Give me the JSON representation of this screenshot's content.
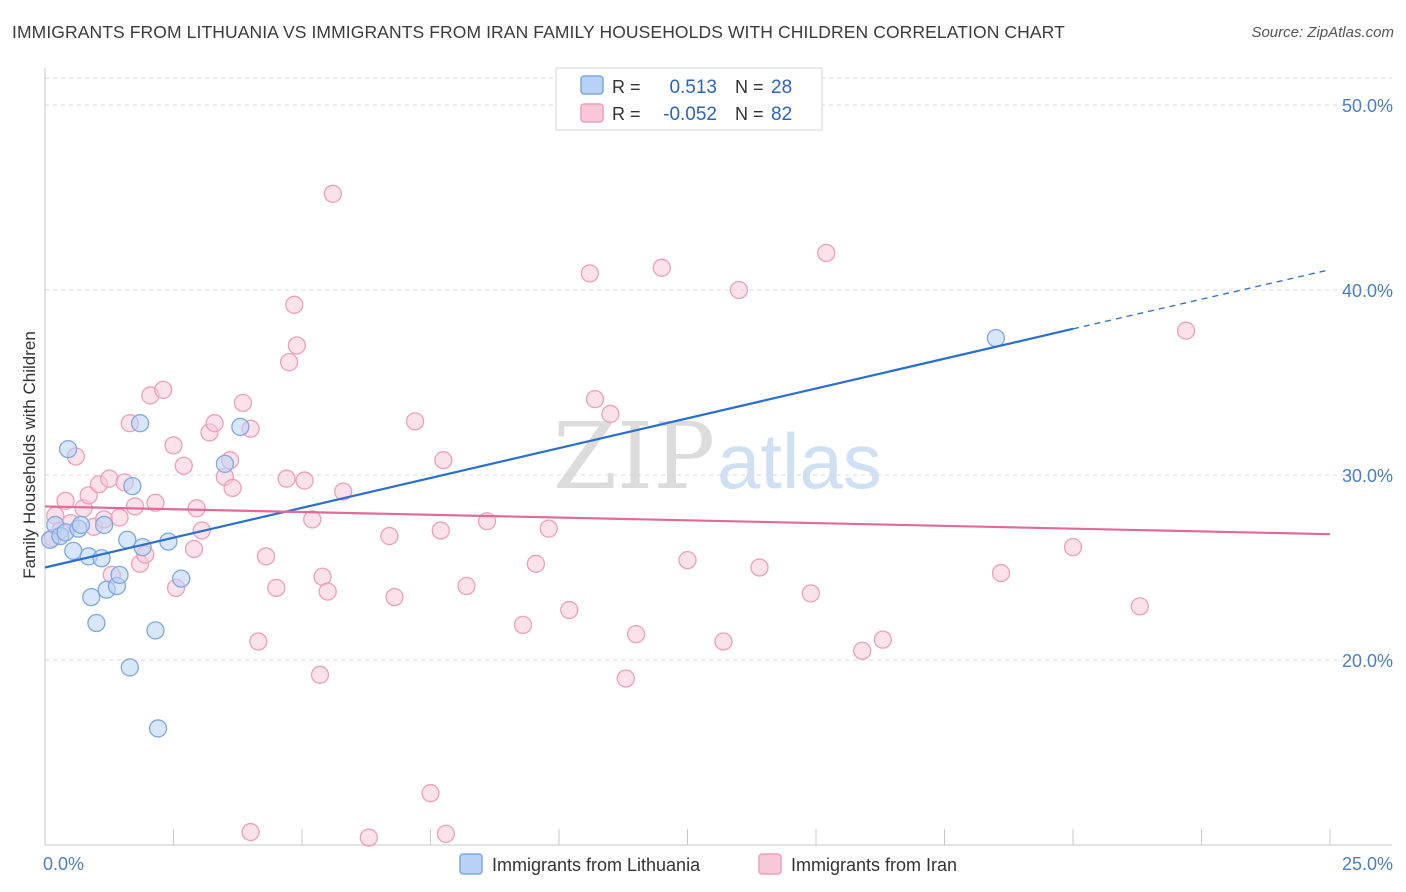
{
  "title": "IMMIGRANTS FROM LITHUANIA VS IMMIGRANTS FROM IRAN FAMILY HOUSEHOLDS WITH CHILDREN CORRELATION CHART",
  "source": "Source: ZipAtlas.com",
  "watermark": {
    "zip": "ZIP",
    "atlas": "atlas"
  },
  "colors": {
    "lithuania_fill": "#b8d2f5",
    "lithuania_stroke": "#7ea8e0",
    "lithuania_line": "#2a6fcf",
    "iran_fill": "#f8c8d8",
    "iran_stroke": "#ee9fbb",
    "iran_line": "#e06a98",
    "tick_label": "#4a7fc6",
    "grid": "#d8d8d8"
  },
  "legend_box": {
    "rows": [
      {
        "r_label": "R =",
        "r_value": "0.513",
        "n_label": "N =",
        "n_value": "28",
        "series": "lithuania"
      },
      {
        "r_label": "R =",
        "r_value": "-0.052",
        "n_label": "N =",
        "n_value": "82",
        "series": "iran"
      }
    ]
  },
  "chart_data": {
    "type": "scatter",
    "title": "IMMIGRANTS FROM LITHUANIA VS IMMIGRANTS FROM IRAN FAMILY HOUSEHOLDS WITH CHILDREN CORRELATION CHART",
    "xlabel": "",
    "ylabel": "Family Households with Children",
    "xlim": [
      0,
      25
    ],
    "ylim": [
      10,
      52
    ],
    "x_tick_labels": [
      {
        "value": 0,
        "label": "0.0%"
      },
      {
        "value": 25,
        "label": "25.0%"
      }
    ],
    "x_minor_ticks": [
      2.5,
      5,
      7.5,
      10,
      12.5,
      15,
      17.5,
      20,
      22.5,
      25
    ],
    "y_ticks": [
      {
        "value": 20,
        "label": "20.0%"
      },
      {
        "value": 30,
        "label": "30.0%"
      },
      {
        "value": 40,
        "label": "40.0%"
      },
      {
        "value": 50,
        "label": "50.0%"
      }
    ],
    "grid": true,
    "legend_position": "bottom-center",
    "series": [
      {
        "name": "Immigrants from Lithuania",
        "key": "lithuania",
        "r": 0.513,
        "n": 28,
        "trend": {
          "x0": 0,
          "y0": 25.0,
          "x1": 20,
          "y1": 37.9,
          "dashed_to_x": 25,
          "dashed_to_y": 41.1
        },
        "points": [
          [
            0.1,
            26.5
          ],
          [
            0.2,
            27.3
          ],
          [
            0.3,
            26.7
          ],
          [
            0.4,
            26.9
          ],
          [
            0.45,
            31.4
          ],
          [
            0.55,
            25.9
          ],
          [
            0.65,
            27.1
          ],
          [
            0.7,
            27.3
          ],
          [
            0.85,
            25.6
          ],
          [
            0.9,
            23.4
          ],
          [
            1.0,
            22.0
          ],
          [
            1.1,
            25.5
          ],
          [
            1.15,
            27.3
          ],
          [
            1.2,
            23.8
          ],
          [
            1.4,
            24.0
          ],
          [
            1.45,
            24.6
          ],
          [
            1.6,
            26.5
          ],
          [
            1.65,
            19.6
          ],
          [
            1.7,
            29.4
          ],
          [
            1.85,
            32.8
          ],
          [
            1.9,
            26.1
          ],
          [
            2.15,
            21.6
          ],
          [
            2.2,
            16.3
          ],
          [
            2.4,
            26.4
          ],
          [
            2.65,
            24.4
          ],
          [
            3.5,
            30.6
          ],
          [
            3.8,
            32.6
          ],
          [
            18.5,
            37.4
          ]
        ]
      },
      {
        "name": "Immigrants from Iran",
        "key": "iran",
        "r": -0.052,
        "n": 82,
        "trend": {
          "x0": 0,
          "y0": 28.3,
          "x1": 25,
          "y1": 26.8
        },
        "points": [
          [
            0.15,
            26.6
          ],
          [
            0.2,
            27.8
          ],
          [
            0.3,
            27.0
          ],
          [
            0.4,
            28.6
          ],
          [
            0.5,
            27.4
          ],
          [
            0.6,
            31.0
          ],
          [
            0.75,
            28.2
          ],
          [
            0.85,
            28.9
          ],
          [
            0.95,
            27.2
          ],
          [
            1.05,
            29.5
          ],
          [
            1.15,
            27.6
          ],
          [
            1.25,
            29.8
          ],
          [
            1.3,
            24.6
          ],
          [
            1.45,
            27.7
          ],
          [
            1.55,
            29.6
          ],
          [
            1.65,
            32.8
          ],
          [
            1.75,
            28.3
          ],
          [
            1.85,
            25.2
          ],
          [
            1.95,
            25.7
          ],
          [
            2.05,
            34.3
          ],
          [
            2.15,
            28.5
          ],
          [
            2.3,
            34.6
          ],
          [
            2.5,
            31.6
          ],
          [
            2.55,
            23.9
          ],
          [
            2.7,
            30.5
          ],
          [
            2.9,
            26.0
          ],
          [
            2.95,
            28.2
          ],
          [
            3.05,
            27.0
          ],
          [
            3.2,
            32.3
          ],
          [
            3.3,
            32.8
          ],
          [
            3.5,
            29.9
          ],
          [
            3.6,
            30.8
          ],
          [
            3.65,
            29.3
          ],
          [
            3.85,
            33.9
          ],
          [
            4.0,
            32.5
          ],
          [
            4.15,
            21.0
          ],
          [
            4.3,
            25.6
          ],
          [
            4.5,
            23.9
          ],
          [
            4.7,
            29.8
          ],
          [
            4.75,
            36.1
          ],
          [
            4.85,
            39.2
          ],
          [
            4.9,
            37.0
          ],
          [
            5.05,
            29.7
          ],
          [
            5.2,
            27.6
          ],
          [
            5.35,
            19.2
          ],
          [
            5.4,
            24.5
          ],
          [
            5.5,
            23.7
          ],
          [
            5.6,
            45.2
          ],
          [
            5.8,
            29.1
          ],
          [
            6.7,
            26.7
          ],
          [
            6.8,
            23.4
          ],
          [
            7.2,
            32.9
          ],
          [
            7.5,
            12.8
          ],
          [
            7.7,
            27.0
          ],
          [
            7.75,
            30.8
          ],
          [
            7.8,
            10.6
          ],
          [
            8.2,
            24.0
          ],
          [
            8.6,
            27.5
          ],
          [
            9.3,
            21.9
          ],
          [
            9.55,
            25.2
          ],
          [
            9.8,
            27.1
          ],
          [
            10.2,
            22.7
          ],
          [
            10.6,
            40.9
          ],
          [
            10.7,
            34.1
          ],
          [
            11.0,
            33.3
          ],
          [
            11.3,
            19.0
          ],
          [
            11.5,
            21.4
          ],
          [
            12.0,
            41.2
          ],
          [
            12.5,
            25.4
          ],
          [
            13.2,
            21.0
          ],
          [
            13.5,
            40.0
          ],
          [
            13.9,
            25.0
          ],
          [
            14.9,
            23.6
          ],
          [
            15.2,
            42.0
          ],
          [
            15.9,
            20.5
          ],
          [
            16.3,
            21.1
          ],
          [
            18.6,
            24.7
          ],
          [
            20.0,
            26.1
          ],
          [
            21.3,
            22.9
          ],
          [
            22.2,
            37.8
          ],
          [
            4.0,
            10.7
          ],
          [
            6.3,
            10.4
          ]
        ]
      }
    ]
  }
}
